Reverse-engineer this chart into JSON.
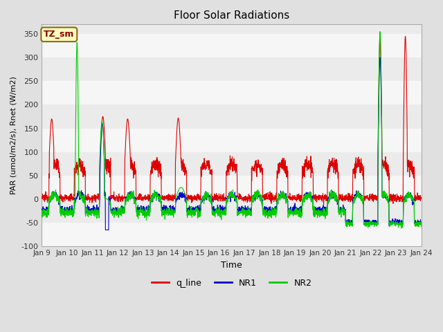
{
  "title": "Floor Solar Radiations",
  "xlabel": "Time",
  "ylabel": "PAR (umol/m2/s), Rnet (W/m2)",
  "ylim": [
    -100,
    370
  ],
  "yticks": [
    -100,
    -50,
    0,
    50,
    100,
    150,
    200,
    250,
    300,
    350
  ],
  "xtick_labels": [
    "Jan 9",
    "Jan 10",
    "Jan 11",
    "Jan 12",
    "Jan 13",
    "Jan 14",
    "Jan 15",
    "Jan 16",
    "Jan 17",
    "Jan 18",
    "Jan 19",
    "Jan 20",
    "Jan 21",
    "Jan 22",
    "Jan 23",
    "Jan 24"
  ],
  "annotation_text": "TZ_sm",
  "annotation_bg": "#FFFFC0",
  "annotation_border": "#8B6914",
  "line_colors": {
    "q_line": "#DD0000",
    "NR1": "#0000CC",
    "NR2": "#00CC00"
  },
  "bg_color": "#E0E0E0",
  "plot_bg": "#EBEBEB",
  "n_days": 15,
  "pts_per_day": 144,
  "legend_labels": [
    "q_line",
    "NR1",
    "NR2"
  ]
}
